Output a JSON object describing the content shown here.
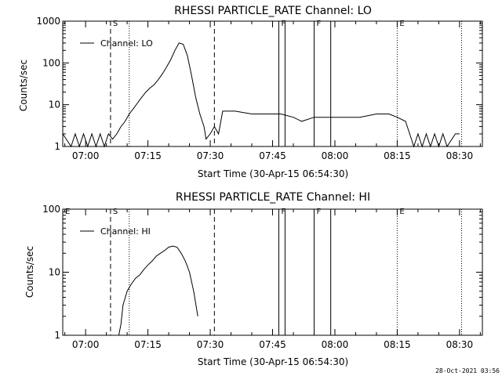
{
  "footer_stamp": "28-Oct-2021 03:56",
  "chart_data": [
    {
      "type": "line",
      "title": "RHESSI PARTICLE_RATE Channel: LO",
      "xlabel": "Start Time (30-Apr-15 06:54:30)",
      "ylabel": "Counts/sec",
      "yscale": "log",
      "ylim": [
        1,
        1000
      ],
      "xlim": [
        "06:54:30",
        "08:35:30"
      ],
      "x_ticks": [
        "07:00",
        "07:15",
        "07:30",
        "07:45",
        "08:00",
        "08:15",
        "08:30"
      ],
      "y_ticks": [
        "1",
        "10",
        "100",
        "1000"
      ],
      "legend": "top-left",
      "series": [
        {
          "name": "Channel: LO",
          "color": "#000000",
          "x": [
            "06:54:30",
            "06:56:30",
            "06:57:30",
            "06:58:30",
            "06:59:30",
            "07:00:30",
            "07:01:30",
            "07:02:30",
            "07:03:30",
            "07:04:30",
            "07:05:30",
            "07:06:30",
            "07:07:30",
            "07:08:30",
            "07:09:30",
            "07:10:30",
            "07:11:30",
            "07:12:30",
            "07:13:30",
            "07:14:30",
            "07:15:30",
            "07:16:30",
            "07:17:30",
            "07:18:30",
            "07:19:30",
            "07:20:30",
            "07:21:30",
            "07:22:30",
            "07:23:30",
            "07:24:30",
            "07:25:30",
            "07:26:30",
            "07:27:30",
            "07:28:30",
            "07:29:00",
            "07:30:00",
            "07:31:00",
            "07:32:00",
            "07:33:00",
            "07:36:00",
            "07:40:00",
            "07:44:00",
            "07:47:00",
            "07:50:00",
            "07:52:00",
            "07:55:00",
            "07:58:00",
            "08:00:00",
            "08:03:00",
            "08:06:00",
            "08:10:00",
            "08:13:00",
            "08:15:00",
            "08:17:00",
            "08:18:00",
            "08:19:00",
            "08:20:00",
            "08:21:00",
            "08:22:00",
            "08:23:00",
            "08:24:00",
            "08:25:00",
            "08:26:00",
            "08:27:00",
            "08:29:00",
            "08:30:00"
          ],
          "y": [
            2,
            1,
            2,
            1,
            2,
            1,
            2,
            1,
            2,
            1,
            2,
            1.5,
            2,
            3,
            4,
            6,
            8,
            11,
            15,
            20,
            25,
            30,
            40,
            55,
            80,
            120,
            200,
            300,
            280,
            150,
            50,
            15,
            6,
            3,
            1.5,
            2,
            3,
            2,
            7,
            7,
            6,
            6,
            6,
            5,
            4,
            5,
            5,
            5,
            5,
            5,
            6,
            6,
            5,
            4,
            2,
            1,
            2,
            1,
            2,
            1,
            2,
            1,
            2,
            1,
            2,
            2
          ]
        }
      ],
      "markers": [
        {
          "label": "S",
          "time": "07:06:00",
          "style": "dashed"
        },
        {
          "label": "",
          "time": "07:10:30",
          "style": "dotted"
        },
        {
          "label": "",
          "time": "07:31:00",
          "style": "dashed"
        },
        {
          "label": "F",
          "time": "07:46:30",
          "style": "solid"
        },
        {
          "label": "",
          "time": "07:48:00",
          "style": "solid"
        },
        {
          "label": "F",
          "time": "07:55:00",
          "style": "solid"
        },
        {
          "label": "",
          "time": "07:59:00",
          "style": "solid"
        },
        {
          "label": "E",
          "time": "08:15:00",
          "style": "dotted"
        },
        {
          "label": "",
          "time": "08:30:30",
          "style": "dotted"
        }
      ]
    },
    {
      "type": "line",
      "title": "RHESSI PARTICLE_RATE Channel: HI",
      "xlabel": "Start Time (30-Apr-15 06:54:30)",
      "ylabel": "Counts/sec",
      "yscale": "log",
      "ylim": [
        1,
        100
      ],
      "xlim": [
        "06:54:30",
        "08:35:30"
      ],
      "x_ticks": [
        "07:00",
        "07:15",
        "07:30",
        "07:45",
        "08:00",
        "08:15",
        "08:30"
      ],
      "y_ticks": [
        "1",
        "10",
        "100"
      ],
      "legend": "top-left",
      "series": [
        {
          "name": "Channel: HI",
          "color": "#000000",
          "x": [
            "07:08:00",
            "07:08:30",
            "07:09:00",
            "07:10:00",
            "07:11:00",
            "07:12:00",
            "07:13:00",
            "07:14:00",
            "07:15:00",
            "07:16:00",
            "07:17:00",
            "07:18:00",
            "07:19:00",
            "07:20:00",
            "07:21:00",
            "07:22:00",
            "07:23:00",
            "07:24:00",
            "07:25:00",
            "07:26:00",
            "07:27:00"
          ],
          "y": [
            1,
            1.5,
            3,
            5,
            6.5,
            8,
            9,
            11,
            13,
            15,
            18,
            20,
            22,
            25,
            26,
            25,
            20,
            15,
            10,
            5,
            2
          ]
        }
      ],
      "markers": [
        {
          "label": "E",
          "time": "06:54:30",
          "style": "none"
        },
        {
          "label": "S",
          "time": "07:06:00",
          "style": "dashed"
        },
        {
          "label": "",
          "time": "07:10:30",
          "style": "dotted"
        },
        {
          "label": "",
          "time": "07:31:00",
          "style": "dashed"
        },
        {
          "label": "F",
          "time": "07:46:30",
          "style": "solid"
        },
        {
          "label": "",
          "time": "07:48:00",
          "style": "solid"
        },
        {
          "label": "F",
          "time": "07:55:00",
          "style": "solid"
        },
        {
          "label": "",
          "time": "07:59:00",
          "style": "solid"
        },
        {
          "label": "E",
          "time": "08:15:00",
          "style": "dotted"
        },
        {
          "label": "",
          "time": "08:30:30",
          "style": "dotted"
        }
      ]
    }
  ]
}
